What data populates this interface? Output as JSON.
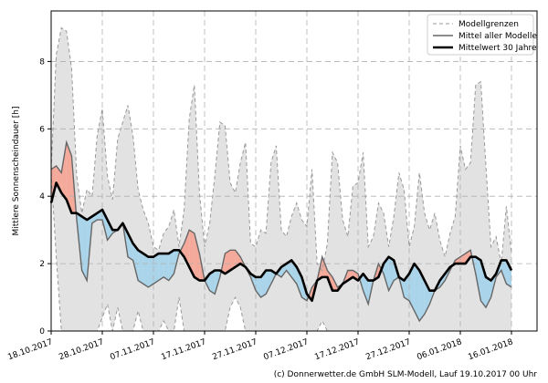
{
  "chart_data": {
    "type": "line",
    "title": "",
    "ylabel": "Mittlere Sonnenscheindauer [h]",
    "xlabel": "",
    "ylim": [
      0,
      9.5
    ],
    "yticks": [
      0,
      2,
      4,
      6,
      8
    ],
    "x_start_day": 0,
    "x_end_day": 95,
    "xtick_days": [
      0,
      10,
      20,
      30,
      40,
      50,
      60,
      70,
      80,
      90
    ],
    "xtick_labels": [
      "18.10.2017",
      "28.10.2017",
      "07.11.2017",
      "17.11.2017",
      "27.11.2017",
      "07.12.2017",
      "17.12.2017",
      "27.12.2017",
      "06.01.2018",
      "16.01.2018"
    ],
    "grid": true,
    "legend_position": "top-right",
    "series": [
      {
        "name": "Modellgrenzen",
        "style": "dashed",
        "color": "#999999",
        "upper": [
          4.8,
          8.2,
          9.0,
          8.9,
          7.8,
          4.6,
          3.5,
          4.2,
          4.0,
          5.8,
          6.6,
          4.6,
          3.9,
          5.7,
          6.2,
          6.7,
          5.8,
          4.2,
          3.6,
          3.2,
          2.5,
          2.4,
          2.9,
          3.1,
          3.6,
          2.5,
          3.6,
          6.3,
          7.3,
          4.1,
          2.5,
          3.2,
          4.6,
          6.2,
          6.1,
          4.4,
          4.1,
          5.0,
          5.6,
          2.6,
          2.5,
          3.0,
          2.9,
          5.0,
          5.5,
          3.0,
          2.8,
          3.4,
          3.8,
          3.3,
          3.1,
          4.8,
          2.0,
          1.8,
          2.6,
          5.3,
          5.0,
          3.3,
          2.8,
          4.3,
          4.4,
          5.3,
          2.5,
          2.8,
          3.8,
          3.5,
          2.5,
          3.4,
          4.7,
          4.2,
          2.5,
          3.1,
          4.7,
          3.5,
          3.0,
          3.5,
          2.7,
          2.2,
          2.9,
          3.4,
          5.5,
          4.8,
          5.0,
          7.3,
          7.4,
          4.9,
          2.5,
          2.8,
          2.0,
          3.7,
          2.3
        ],
        "lower": [
          4.7,
          2.2,
          0.0,
          0.0,
          0.0,
          0.0,
          0.0,
          0.0,
          0.0,
          0.0,
          0.4,
          0.8,
          0.0,
          0.7,
          0.0,
          0.0,
          0.0,
          0.6,
          0.0,
          0.0,
          0.0,
          0.0,
          0.3,
          0.0,
          0.0,
          1.0,
          0.0,
          0.0,
          0.0,
          0.0,
          0.0,
          0.0,
          0.0,
          0.0,
          0.0,
          0.7,
          1.0,
          0.7,
          0.0,
          0.0,
          0.0,
          0.0,
          0.0,
          0.0,
          0.0,
          0.0,
          0.0,
          0.0,
          0.0,
          0.0,
          0.0,
          0.0,
          0.0,
          0.3,
          0.0,
          0.0,
          0.0,
          0.0,
          0.0,
          0.0,
          0.0,
          0.0,
          0.0,
          0.0,
          0.0,
          0.0,
          0.0,
          0.0,
          0.0,
          0.0,
          0.0,
          0.0,
          0.0,
          0.0,
          0.0,
          0.0,
          0.0,
          0.0,
          0.0,
          0.0,
          0.0,
          0.0,
          0.0,
          0.0,
          0.0,
          0.0,
          0.0,
          0.0,
          0.0,
          0.0,
          0.0
        ]
      },
      {
        "name": "Mittel aller Modelle",
        "style": "solid",
        "color": "#666666",
        "values": [
          4.8,
          4.9,
          4.7,
          5.6,
          5.2,
          3.3,
          1.8,
          1.5,
          3.2,
          3.3,
          3.3,
          2.7,
          2.9,
          3.0,
          3.2,
          2.2,
          2.1,
          1.5,
          1.4,
          1.3,
          1.4,
          1.5,
          1.6,
          1.5,
          1.7,
          2.3,
          2.6,
          3.0,
          2.9,
          2.3,
          1.5,
          1.2,
          1.1,
          1.6,
          2.3,
          2.4,
          2.4,
          2.2,
          1.9,
          1.6,
          1.2,
          1.0,
          1.1,
          1.4,
          1.7,
          1.6,
          1.8,
          1.6,
          1.4,
          1.0,
          0.9,
          1.3,
          1.5,
          2.2,
          1.8,
          1.6,
          1.3,
          1.4,
          1.8,
          1.8,
          1.7,
          1.2,
          0.8,
          1.5,
          2.0,
          1.7,
          1.2,
          1.5,
          1.6,
          1.0,
          0.9,
          0.6,
          0.3,
          0.5,
          0.8,
          1.2,
          1.3,
          1.5,
          1.8,
          2.1,
          2.2,
          2.3,
          2.4,
          1.7,
          0.9,
          0.7,
          1.0,
          1.6,
          1.8,
          1.4,
          1.3
        ]
      },
      {
        "name": "Mittelwert 30 Jahre",
        "style": "solid-thick",
        "color": "#000000",
        "values": [
          3.8,
          4.4,
          4.1,
          3.9,
          3.5,
          3.5,
          3.4,
          3.3,
          3.4,
          3.5,
          3.6,
          3.3,
          3.0,
          3.0,
          3.2,
          2.9,
          2.6,
          2.4,
          2.3,
          2.2,
          2.2,
          2.3,
          2.3,
          2.3,
          2.4,
          2.4,
          2.2,
          1.9,
          1.6,
          1.5,
          1.5,
          1.7,
          1.8,
          1.8,
          1.7,
          1.8,
          1.9,
          2.0,
          1.9,
          1.7,
          1.6,
          1.6,
          1.8,
          1.8,
          1.7,
          1.9,
          2.0,
          2.1,
          1.9,
          1.6,
          1.1,
          0.9,
          1.5,
          1.6,
          1.6,
          1.2,
          1.2,
          1.4,
          1.5,
          1.6,
          1.5,
          1.7,
          1.5,
          1.5,
          1.6,
          2.0,
          2.2,
          2.1,
          1.6,
          1.5,
          1.7,
          2.0,
          1.8,
          1.5,
          1.2,
          1.2,
          1.5,
          1.7,
          1.9,
          2.0,
          2.0,
          2.0,
          2.2,
          2.2,
          2.1,
          1.6,
          1.5,
          1.7,
          2.1,
          2.1,
          1.8
        ]
      }
    ],
    "fill_above_color": "#f4a99a",
    "fill_below_color": "#a9d4ea",
    "band_color": "#e2e2e2"
  },
  "footer": "(c) Donnerwetter.de GmbH SLM-Modell, Lauf 19.10.2017 00 Uhr"
}
